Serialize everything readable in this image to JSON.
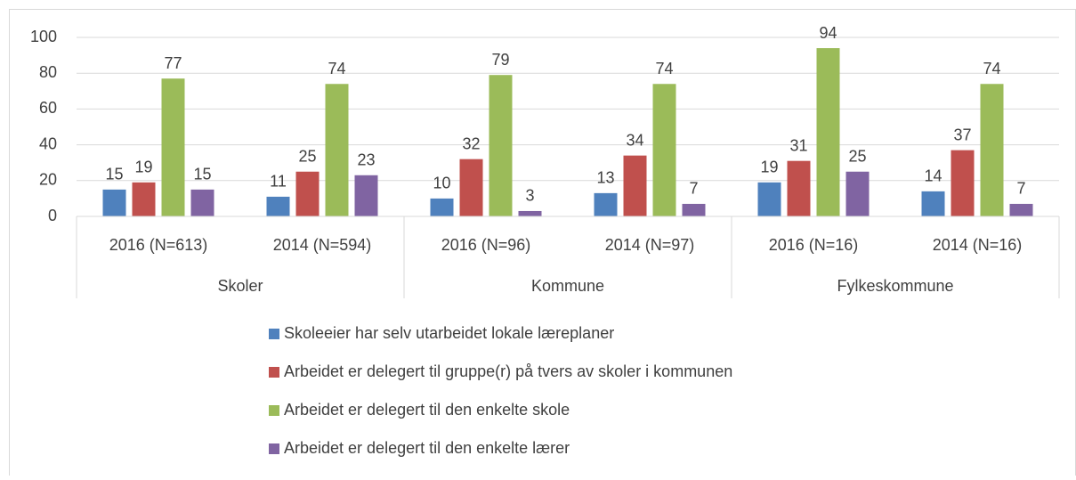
{
  "chart_data": {
    "type": "bar",
    "groups": [
      {
        "name": "Skoler",
        "categories": [
          "2016 (N=613)",
          "2014 (N=594)"
        ]
      },
      {
        "name": "Kommune",
        "categories": [
          "2016 (N=96)",
          "2014 (N=97)"
        ]
      },
      {
        "name": "Fylkeskommune",
        "categories": [
          "2016 (N=16)",
          "2014 (N=16)"
        ]
      }
    ],
    "series": [
      {
        "name": "Skoleeier har selv utarbeidet lokale læreplaner",
        "color": "#4f81bd",
        "values": [
          15,
          11,
          10,
          13,
          19,
          14
        ]
      },
      {
        "name": "Arbeidet er delegert til gruppe(r) på tvers av skoler i kommunen",
        "color": "#c0504d",
        "values": [
          19,
          25,
          32,
          34,
          31,
          37
        ]
      },
      {
        "name": "Arbeidet er delegert til den enkelte skole",
        "color": "#9bbb59",
        "values": [
          77,
          74,
          79,
          74,
          94,
          74
        ]
      },
      {
        "name": "Arbeidet er delegert til den enkelte lærer",
        "color": "#8064a2",
        "values": [
          15,
          23,
          3,
          7,
          25,
          7
        ]
      }
    ],
    "ylim": [
      0,
      100
    ],
    "yticks": [
      0,
      20,
      40,
      60,
      80,
      100
    ],
    "grid": true,
    "legend": "bottom"
  }
}
